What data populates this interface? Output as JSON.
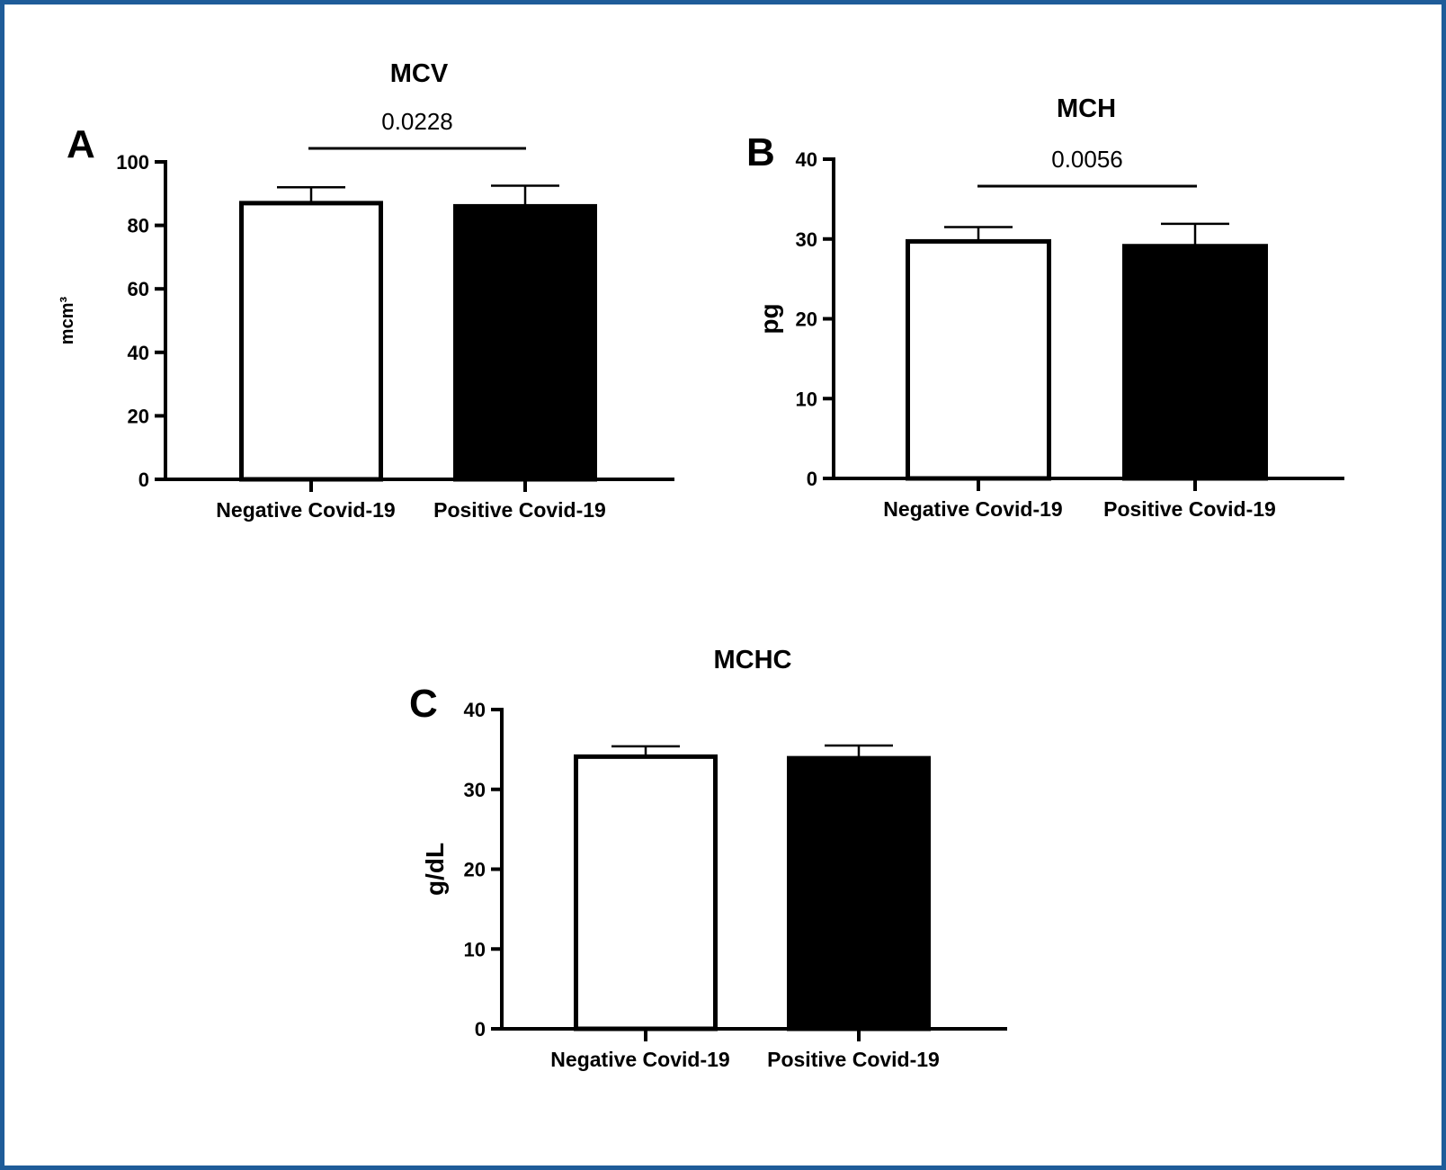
{
  "chart_data": [
    {
      "type": "bar",
      "panel": "A",
      "title": "MCV",
      "ylabel": "mcm³",
      "categories": [
        "Negative Covid-19",
        "Positive Covid-19"
      ],
      "values": [
        87,
        86
      ],
      "error": [
        5,
        6.5
      ],
      "fills": [
        "#ffffff",
        "#000000"
      ],
      "ylim": [
        0,
        100
      ],
      "yticks": [
        0,
        20,
        40,
        60,
        80,
        100
      ],
      "significance": "0.0228"
    },
    {
      "type": "bar",
      "panel": "B",
      "title": "MCH",
      "ylabel": "pg",
      "categories": [
        "Negative Covid-19",
        "Positive Covid-19"
      ],
      "values": [
        29.7,
        29.1
      ],
      "error": [
        1.8,
        2.8
      ],
      "fills": [
        "#ffffff",
        "#000000"
      ],
      "ylim": [
        0,
        40
      ],
      "yticks": [
        0,
        10,
        20,
        30,
        40
      ],
      "significance": "0.0056"
    },
    {
      "type": "bar",
      "panel": "C",
      "title": "MCHC",
      "ylabel": "g/dL",
      "categories": [
        "Negative Covid-19",
        "Positive Covid-19"
      ],
      "values": [
        34.1,
        33.9
      ],
      "error": [
        1.3,
        1.6
      ],
      "fills": [
        "#ffffff",
        "#000000"
      ],
      "ylim": [
        0,
        40
      ],
      "yticks": [
        0,
        10,
        20,
        30,
        40
      ],
      "significance": ""
    }
  ]
}
